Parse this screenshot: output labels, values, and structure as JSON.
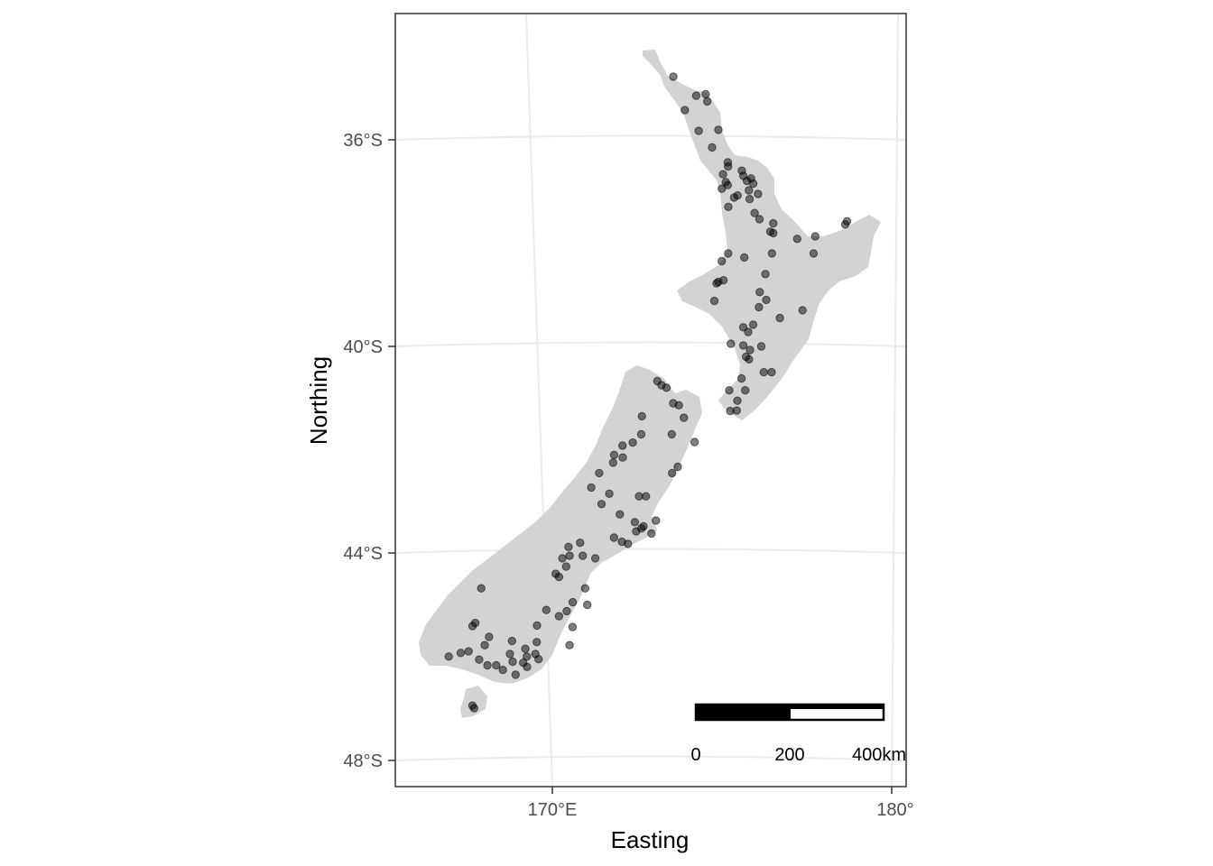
{
  "axes": {
    "x_title": "Easting",
    "y_title": "Northing",
    "x_ticks": [
      "170°E",
      "180°"
    ],
    "y_ticks": [
      "36°S",
      "40°S",
      "44°S",
      "48°S"
    ]
  },
  "scale_bar": {
    "labels": [
      "0",
      "200",
      "400km"
    ]
  },
  "colors": {
    "land": "#d3d3d3",
    "points": "#000000",
    "grid": "#ebebeb",
    "panel_border": "#333333"
  },
  "sites": [
    [
      -34.78,
      173.09
    ],
    [
      -35.15,
      173.78
    ],
    [
      -35.12,
      174.06
    ],
    [
      -35.26,
      174.11
    ],
    [
      -35.43,
      173.46
    ],
    [
      -35.83,
      173.89
    ],
    [
      -35.81,
      174.47
    ],
    [
      -36.15,
      174.3
    ],
    [
      -36.44,
      174.78
    ],
    [
      -36.52,
      174.79
    ],
    [
      -36.67,
      174.65
    ],
    [
      -36.82,
      174.74
    ],
    [
      -36.88,
      174.8
    ],
    [
      -36.95,
      174.63
    ],
    [
      -36.6,
      175.2
    ],
    [
      -36.75,
      175.48
    ],
    [
      -36.8,
      175.36
    ],
    [
      -36.85,
      175.55
    ],
    [
      -36.98,
      175.43
    ],
    [
      -37.08,
      175.1
    ],
    [
      -37.12,
      175.0
    ],
    [
      -37.3,
      174.84
    ],
    [
      -37.15,
      175.46
    ],
    [
      -37.42,
      175.62
    ],
    [
      -37.54,
      175.77
    ],
    [
      -37.62,
      176.18
    ],
    [
      -37.78,
      176.1
    ],
    [
      -37.81,
      176.19
    ],
    [
      -37.92,
      176.9
    ],
    [
      -37.87,
      177.43
    ],
    [
      -37.64,
      178.3
    ],
    [
      -37.58,
      178.35
    ],
    [
      -38.2,
      174.88
    ],
    [
      -38.28,
      175.36
    ],
    [
      -38.2,
      176.17
    ],
    [
      -38.2,
      177.4
    ],
    [
      -38.35,
      174.7
    ],
    [
      -38.6,
      176.0
    ],
    [
      -38.72,
      174.77
    ],
    [
      -38.75,
      174.62
    ],
    [
      -38.78,
      174.57
    ],
    [
      -39.12,
      174.52
    ],
    [
      -39.1,
      176.05
    ],
    [
      -39.24,
      175.84
    ],
    [
      -39.3,
      177.13
    ],
    [
      -39.63,
      175.4
    ],
    [
      -39.58,
      175.69
    ],
    [
      -39.72,
      175.55
    ],
    [
      -39.95,
      175.05
    ],
    [
      -40.0,
      175.95
    ],
    [
      -40.07,
      175.62
    ],
    [
      -40.2,
      175.51
    ],
    [
      -40.25,
      175.6
    ],
    [
      -40.5,
      176.05
    ],
    [
      -40.62,
      175.4
    ],
    [
      -40.85,
      175.52
    ],
    [
      -41.05,
      175.3
    ],
    [
      -41.25,
      175.1
    ],
    [
      -41.24,
      175.29
    ],
    [
      -40.67,
      172.92
    ],
    [
      -40.75,
      173.05
    ],
    [
      -40.8,
      173.2
    ],
    [
      -41.1,
      173.41
    ],
    [
      -41.14,
      173.58
    ],
    [
      -41.38,
      173.74
    ],
    [
      -41.85,
      174.08
    ],
    [
      -41.35,
      172.5
    ],
    [
      -41.7,
      172.5
    ],
    [
      -41.92,
      171.96
    ],
    [
      -41.86,
      172.26
    ],
    [
      -41.7,
      173.4
    ],
    [
      -42.33,
      173.61
    ],
    [
      -42.45,
      173.45
    ],
    [
      -42.1,
      171.72
    ],
    [
      -42.25,
      171.7
    ],
    [
      -42.45,
      171.3
    ],
    [
      -42.73,
      171.08
    ],
    [
      -42.85,
      171.62
    ],
    [
      -43.05,
      171.4
    ],
    [
      -42.9,
      172.7
    ],
    [
      -42.9,
      172.5
    ],
    [
      -43.25,
      171.95
    ],
    [
      -43.4,
      172.4
    ],
    [
      -43.52,
      172.6
    ],
    [
      -43.58,
      172.45
    ],
    [
      -43.62,
      172.9
    ],
    [
      -43.37,
      173.02
    ],
    [
      -43.48,
      172.66
    ],
    [
      -43.78,
      172.04
    ],
    [
      -43.82,
      172.22
    ],
    [
      -43.7,
      171.8
    ],
    [
      -43.88,
      170.47
    ],
    [
      -43.8,
      170.81
    ],
    [
      -44.05,
      170.51
    ],
    [
      -44.1,
      170.3
    ],
    [
      -44.1,
      171.27
    ],
    [
      -44.05,
      170.9
    ],
    [
      -44.26,
      170.42
    ],
    [
      -44.4,
      170.12
    ],
    [
      -44.46,
      170.22
    ],
    [
      -44.68,
      171.0
    ],
    [
      -45.0,
      171.08
    ],
    [
      -45.1,
      169.88
    ],
    [
      -45.12,
      170.48
    ],
    [
      -45.22,
      170.26
    ],
    [
      -45.43,
      170.67
    ],
    [
      -45.78,
      170.6
    ],
    [
      -45.4,
      169.62
    ],
    [
      -45.72,
      169.63
    ],
    [
      -45.85,
      169.3
    ],
    [
      -45.7,
      168.9
    ],
    [
      -46.0,
      169.35
    ],
    [
      -46.1,
      168.94
    ],
    [
      -46.12,
      169.25
    ],
    [
      -45.95,
      169.6
    ],
    [
      -46.05,
      169.7
    ],
    [
      -45.62,
      168.22
    ],
    [
      -45.78,
      168.1
    ],
    [
      -46.06,
      167.95
    ],
    [
      -46.17,
      168.2
    ],
    [
      -46.17,
      168.46
    ],
    [
      -46.26,
      168.66
    ],
    [
      -46.35,
      169.04
    ],
    [
      -46.2,
      169.37
    ],
    [
      -45.41,
      167.72
    ],
    [
      -45.35,
      167.8
    ],
    [
      -44.68,
      167.94
    ],
    [
      -46.0,
      167.05
    ],
    [
      -45.93,
      167.4
    ],
    [
      -45.9,
      167.63
    ],
    [
      -47.0,
      167.85
    ],
    [
      -46.95,
      167.8
    ],
    [
      -45.95,
      168.85
    ],
    [
      -44.95,
      170.65
    ],
    [
      -42.15,
      171.98
    ],
    [
      -40.85,
      175.05
    ],
    [
      -40.5,
      176.28
    ],
    [
      -39.98,
      175.42
    ],
    [
      -39.45,
      176.47
    ],
    [
      -38.95,
      175.85
    ],
    [
      -37.05,
      175.7
    ],
    [
      -36.7,
      175.25
    ]
  ]
}
